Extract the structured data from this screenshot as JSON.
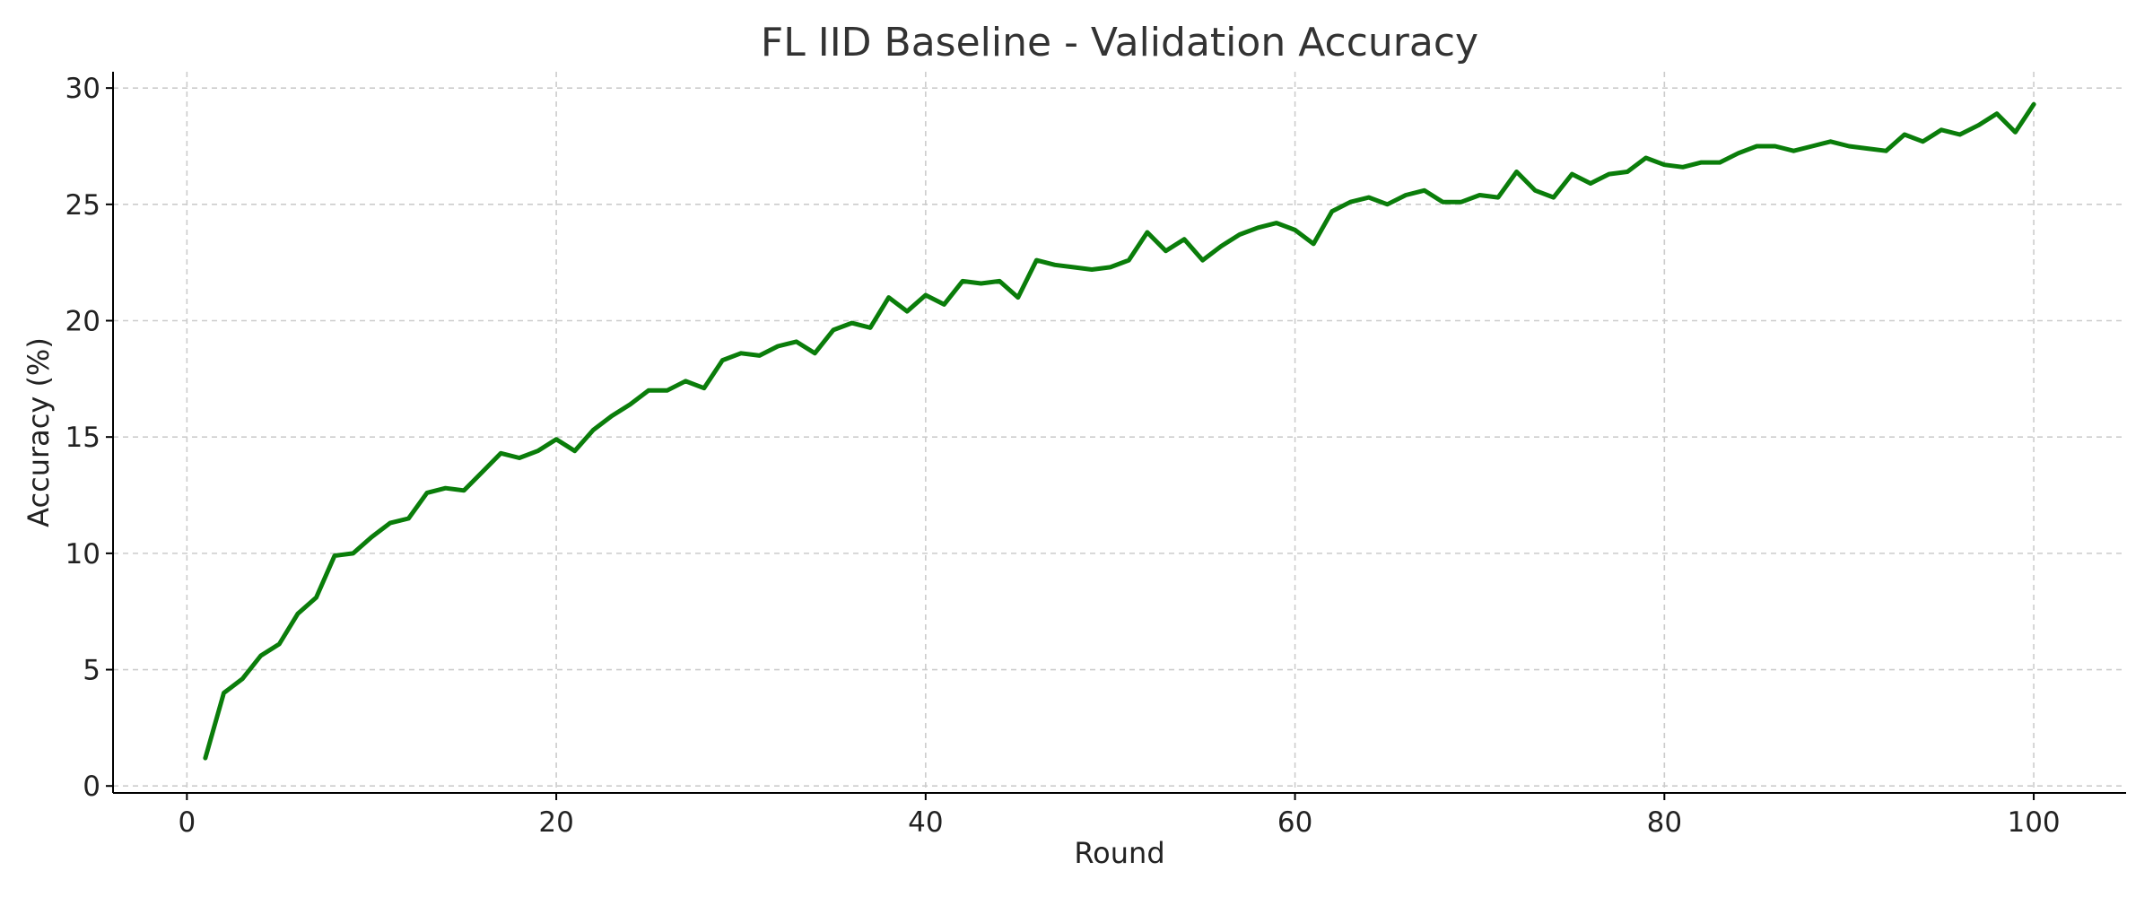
{
  "chart_data": {
    "type": "line",
    "title": "FL IID Baseline - Validation Accuracy",
    "xlabel": "Round",
    "ylabel": "Accuracy (%)",
    "xlim": [
      -4,
      105
    ],
    "ylim": [
      -0.3,
      30.7
    ],
    "xticks": [
      0,
      20,
      40,
      60,
      80,
      100
    ],
    "yticks": [
      0,
      5,
      10,
      15,
      20,
      25,
      30
    ],
    "grid": true,
    "line_color": "#0a7d0a",
    "series": [
      {
        "x": [
          1,
          2,
          3,
          4,
          5,
          6,
          7,
          8,
          9,
          10,
          11,
          12,
          13,
          14,
          15,
          16,
          17,
          18,
          19,
          20,
          21,
          22,
          23,
          24,
          25,
          26,
          27,
          28,
          29,
          30,
          31,
          32,
          33,
          34,
          35,
          36,
          37,
          38,
          39,
          40,
          41,
          42,
          43,
          44,
          45,
          46,
          47,
          48,
          49,
          50,
          51,
          52,
          53,
          54,
          55,
          56,
          57,
          58,
          59,
          60,
          61,
          62,
          63,
          64,
          65,
          66,
          67,
          68,
          69,
          70,
          71,
          72,
          73,
          74,
          75,
          76,
          77,
          78,
          79,
          80,
          81,
          82,
          83,
          84,
          85,
          86,
          87,
          88,
          89,
          90,
          91,
          92,
          93,
          94,
          95,
          96,
          97,
          98,
          99,
          100
        ],
        "values": [
          1.2,
          4.0,
          4.6,
          5.6,
          6.1,
          7.4,
          8.1,
          9.9,
          10.0,
          10.7,
          11.3,
          11.5,
          12.6,
          12.8,
          12.7,
          13.5,
          14.3,
          14.1,
          14.4,
          14.9,
          14.4,
          15.3,
          15.9,
          16.4,
          17.0,
          17.0,
          17.4,
          17.1,
          18.3,
          18.6,
          18.5,
          18.9,
          19.1,
          18.6,
          19.6,
          19.9,
          19.7,
          21.0,
          20.4,
          21.1,
          20.7,
          21.7,
          21.6,
          21.7,
          21.0,
          22.6,
          22.4,
          22.3,
          22.2,
          22.3,
          22.6,
          23.8,
          23.0,
          23.5,
          22.6,
          23.2,
          23.7,
          24.0,
          24.2,
          23.9,
          23.3,
          24.7,
          25.1,
          25.3,
          25.0,
          25.4,
          25.6,
          25.1,
          25.1,
          25.4,
          25.3,
          26.4,
          25.6,
          25.3,
          26.3,
          25.9,
          26.3,
          26.4,
          27.0,
          26.7,
          26.6,
          26.8,
          26.8,
          27.2,
          27.5,
          27.5,
          27.3,
          27.5,
          27.7,
          27.5,
          27.4,
          27.3,
          28.0,
          27.7,
          28.2,
          28.0,
          28.4,
          28.9,
          28.1,
          29.3
        ]
      }
    ]
  }
}
